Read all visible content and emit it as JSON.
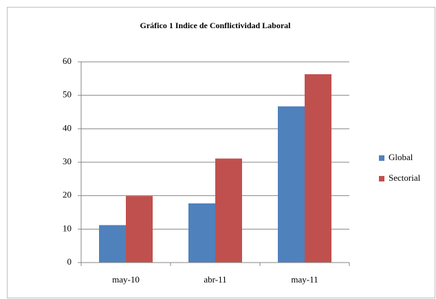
{
  "chart_data": {
    "type": "bar",
    "title": "Gráfico 1 Indice de Conflictividad Laboral",
    "categories": [
      "may-10",
      "abr-11",
      "may-11"
    ],
    "series": [
      {
        "name": "Global",
        "color": "#4f81bd",
        "values": [
          11.2,
          17.7,
          46.7
        ]
      },
      {
        "name": "Sectorial",
        "color": "#c0504d",
        "values": [
          19.9,
          31.1,
          56.3
        ]
      }
    ],
    "ylim": [
      0,
      60
    ],
    "yticks": [
      0,
      10,
      20,
      30,
      40,
      50,
      60
    ],
    "grid": true,
    "legend": "right"
  }
}
